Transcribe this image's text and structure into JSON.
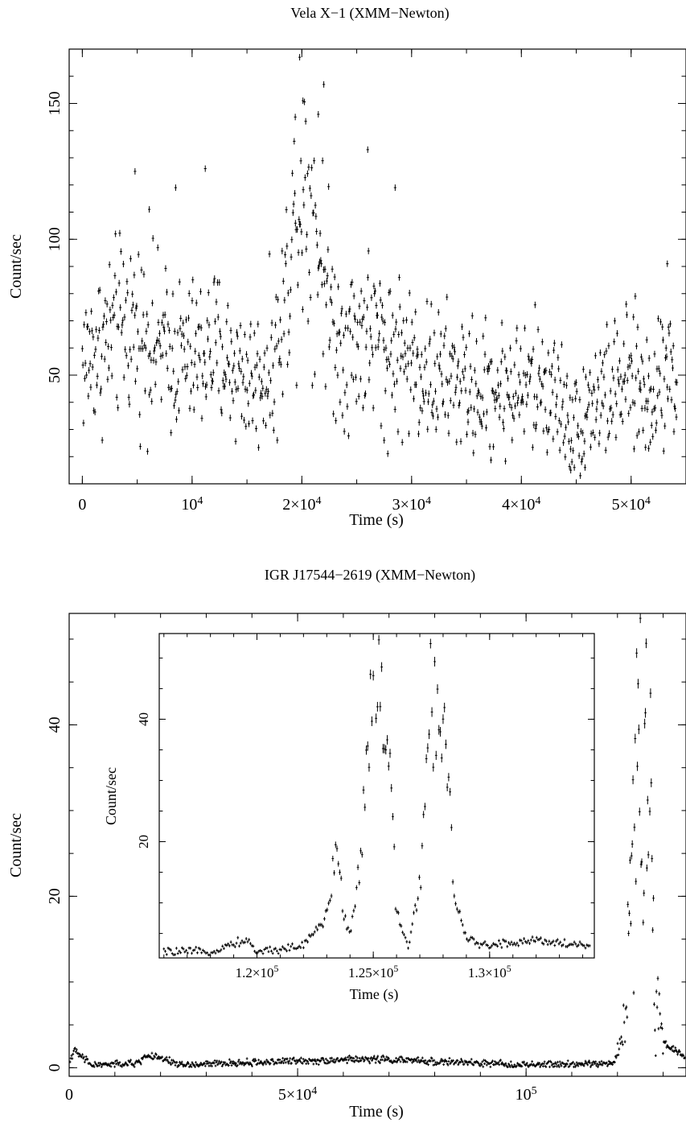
{
  "figure": {
    "charts": [
      {
        "title": "Vela X−1 (XMM−Newton)",
        "xlabel": "Time (s)",
        "ylabel": "Count/sec",
        "x_ticks": [
          {
            "value": 0,
            "label": "0"
          },
          {
            "value": 10000,
            "label": "10",
            "sup": "4"
          },
          {
            "value": 20000,
            "label": "2×10",
            "sup": "4"
          },
          {
            "value": 30000,
            "label": "3×10",
            "sup": "4"
          },
          {
            "value": 40000,
            "label": "4×10",
            "sup": "4"
          },
          {
            "value": 50000,
            "label": "5×10",
            "sup": "4"
          }
        ],
        "y_ticks": [
          {
            "value": 50,
            "label": "50"
          },
          {
            "value": 100,
            "label": "100"
          },
          {
            "value": 150,
            "label": "150"
          }
        ]
      },
      {
        "title": "IGR J17544−2619 (XMM−Newton)",
        "xlabel": "Time (s)",
        "ylabel": "Count/sec",
        "x_ticks": [
          {
            "value": 0,
            "label": "0"
          },
          {
            "value": 50000,
            "label": "5×10",
            "sup": "4"
          },
          {
            "value": 100000,
            "label": "10",
            "sup": "5"
          }
        ],
        "y_ticks": [
          {
            "value": 0,
            "label": "0"
          },
          {
            "value": 20,
            "label": "20"
          },
          {
            "value": 40,
            "label": "40"
          }
        ]
      },
      {
        "title": "",
        "xlabel": "Time (s)",
        "ylabel": "Count/sec",
        "x_ticks": [
          {
            "value": 120000,
            "label": "1.2×10",
            "sup": "5"
          },
          {
            "value": 125000,
            "label": "1.25×10",
            "sup": "5"
          },
          {
            "value": 130000,
            "label": "1.3×10",
            "sup": "5"
          }
        ],
        "y_ticks": [
          {
            "value": 20,
            "label": "20"
          },
          {
            "value": 40,
            "label": "40"
          }
        ]
      }
    ]
  },
  "chart_data": [
    {
      "type": "scatter",
      "title": "Vela X−1 (XMM−Newton)",
      "xlabel": "Time (s)",
      "ylabel": "Count/sec",
      "xlim": [
        -1200,
        55000
      ],
      "ylim": [
        10,
        170
      ],
      "x": [
        0,
        2000,
        4000,
        6000,
        8000,
        10000,
        12000,
        14000,
        16000,
        18000,
        19000,
        20000,
        21000,
        22000,
        23000,
        24000,
        26000,
        28000,
        30000,
        32000,
        34000,
        36000,
        38000,
        40000,
        42000,
        44000,
        45000,
        46000,
        48000,
        50000,
        52000,
        53000,
        54000
      ],
      "y": [
        55,
        62,
        70,
        64,
        58,
        56,
        60,
        52,
        48,
        60,
        100,
        120,
        110,
        90,
        65,
        62,
        66,
        60,
        55,
        50,
        48,
        44,
        45,
        46,
        47,
        38,
        30,
        40,
        44,
        48,
        42,
        58,
        50
      ],
      "peak_points": [
        {
          "x": 19800,
          "y": 167
        },
        {
          "x": 22000,
          "y": 157
        },
        {
          "x": 20100,
          "y": 151
        },
        {
          "x": 19400,
          "y": 145
        },
        {
          "x": 21500,
          "y": 146
        },
        {
          "x": 4800,
          "y": 125
        },
        {
          "x": 11200,
          "y": 126
        },
        {
          "x": 26000,
          "y": 133
        },
        {
          "x": 28500,
          "y": 119
        },
        {
          "x": 53300,
          "y": 91
        },
        {
          "x": 44500,
          "y": 15
        },
        {
          "x": 45800,
          "y": 16
        },
        {
          "x": 27500,
          "y": 26
        },
        {
          "x": 51600,
          "y": 23
        },
        {
          "x": 8500,
          "y": 119
        },
        {
          "x": 6100,
          "y": 111
        }
      ]
    },
    {
      "type": "scatter",
      "title": "IGR J17544−2619 (XMM−Newton)",
      "xlabel": "Time (s)",
      "ylabel": "Count/sec",
      "xlim": [
        0,
        135000
      ],
      "ylim": [
        -1,
        53
      ],
      "x": [
        0,
        1000,
        5000,
        15000,
        17000,
        25000,
        50000,
        67000,
        100000,
        119000,
        121000,
        122000,
        123000,
        124000,
        125000,
        126000,
        127000,
        127500,
        128000,
        130000,
        133000,
        135000
      ],
      "y": [
        0.5,
        2.0,
        0.3,
        0.5,
        1.5,
        0.3,
        0.8,
        1.0,
        0.3,
        0.5,
        3,
        8,
        20,
        35,
        45,
        30,
        40,
        25,
        10,
        3,
        2,
        1
      ]
    },
    {
      "type": "scatter",
      "title": "",
      "xlabel": "Time (s)",
      "ylabel": "Count/sec",
      "xlim": [
        115800,
        134500
      ],
      "ylim": [
        1,
        54
      ],
      "x": [
        116000,
        118000,
        119500,
        120000,
        122000,
        123000,
        123500,
        123700,
        124000,
        124500,
        125000,
        125500,
        125800,
        126000,
        126500,
        127000,
        127500,
        128000,
        128200,
        128500,
        129000,
        130000,
        132000,
        134000
      ],
      "y": [
        2,
        2,
        4,
        2,
        3,
        8,
        20,
        8,
        5,
        18,
        52,
        36,
        27,
        8,
        3,
        12,
        44,
        40,
        35,
        10,
        4,
        3,
        4,
        3
      ]
    }
  ]
}
